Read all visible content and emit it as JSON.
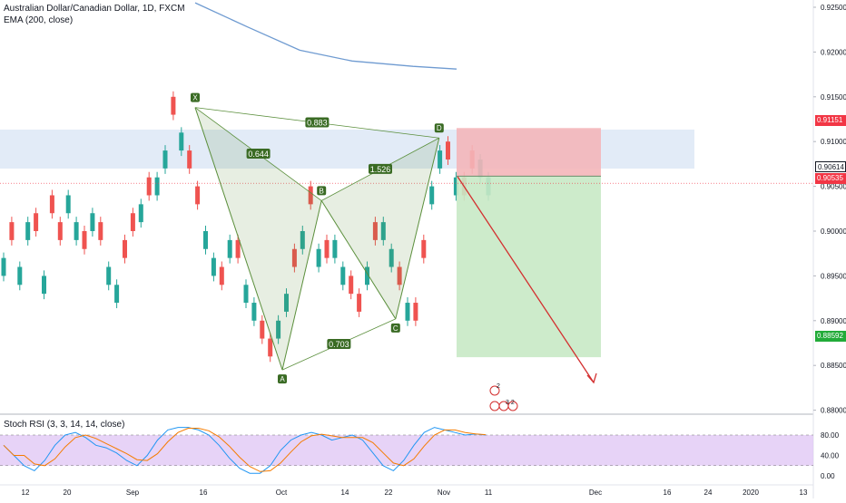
{
  "legend": {
    "symbol": "Australian Dollar/Canadian Dollar, 1D, FXCM",
    "ema": "EMA (200, close)",
    "stoch": "Stoch RSI (3, 3, 14, 14, close)"
  },
  "price_axis": {
    "ticks": [
      "0.92500",
      "0.92000",
      "0.91500",
      "0.91000",
      "0.90500",
      "0.90000",
      "0.89500",
      "0.89000",
      "0.88500",
      "0.88000"
    ],
    "tick_values": [
      0.925,
      0.92,
      0.915,
      0.91,
      0.905,
      0.9,
      0.895,
      0.89,
      0.885,
      0.88
    ]
  },
  "price_labels": {
    "stop": {
      "text": "0.91151",
      "value": 0.91151,
      "color": "#f23645"
    },
    "current": {
      "text": "0.90614",
      "value": 0.90614,
      "color": "#131722"
    },
    "last": {
      "text": "0.90535",
      "value": 0.90535,
      "color": "#f23645"
    },
    "target": {
      "text": "0.88592",
      "value": 0.88592,
      "color": "#22ab39"
    }
  },
  "rsi_axis": {
    "ticks": [
      "80.00",
      "40.00",
      "0.00"
    ],
    "tick_values": [
      80,
      40,
      0
    ]
  },
  "time_axis": {
    "labels": [
      "12",
      "20",
      "Sep",
      "16",
      "Oct",
      "14",
      "22",
      "Nov",
      "11",
      "Dec",
      "16",
      "24",
      "2020",
      "13"
    ]
  },
  "pattern": {
    "points": [
      {
        "label": "X",
        "date": "2019-09-13",
        "price": 0.9138
      },
      {
        "label": "A",
        "date": "2019-10-03",
        "price": 0.8845
      },
      {
        "label": "B",
        "date": "2019-10-12",
        "price": 0.9034
      },
      {
        "label": "C",
        "date": "2019-10-29",
        "price": 0.8902
      },
      {
        "label": "D",
        "date": "2019-11-08",
        "price": 0.9104
      }
    ],
    "ratios": [
      "0.644",
      "0.703",
      "1.526",
      "0.883"
    ]
  },
  "position": {
    "entry": 0.90614,
    "stop": 0.91151,
    "target": 0.88592
  },
  "ema_200": [
    {
      "date": "2019-09-13",
      "price": 0.9255
    },
    {
      "date": "2019-09-25",
      "price": 0.9228
    },
    {
      "date": "2019-10-07",
      "price": 0.9202
    },
    {
      "date": "2019-10-19",
      "price": 0.919
    },
    {
      "date": "2019-11-02",
      "price": 0.9184
    },
    {
      "date": "2019-11-12",
      "price": 0.9181
    }
  ],
  "colors": {
    "up": "#26a69a",
    "down": "#ef5350",
    "ema": "#6f9bd1",
    "pattern": "#5b8f3c",
    "stop_zone": "#f4b6b9",
    "target_zone": "#c8e9c5",
    "resistance_zone": "#dbe6f5",
    "stoch_k": "#2196f3",
    "stoch_d": "#f57c00",
    "rsi_band": "#e1c8f5"
  },
  "events": {
    "top": "2",
    "bottom": "3 2"
  }
}
